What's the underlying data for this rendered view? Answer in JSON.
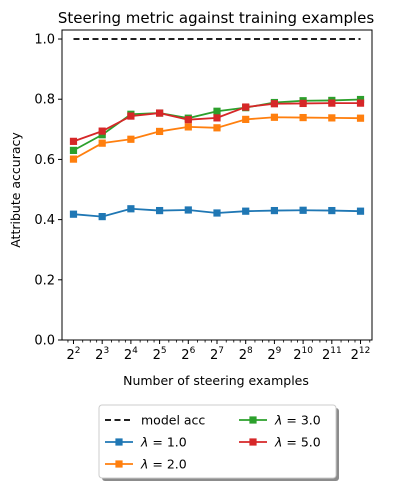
{
  "chart_data": {
    "type": "line",
    "title": "Steering metric against training examples",
    "xlabel": "Number of steering examples",
    "ylabel": "Attribute accuracy",
    "x_scale": "log2",
    "x": [
      4,
      8,
      16,
      32,
      64,
      128,
      256,
      512,
      1024,
      2048,
      4096
    ],
    "x_tick_labels": [
      {
        "base": "2",
        "exp": "2"
      },
      {
        "base": "2",
        "exp": "3"
      },
      {
        "base": "2",
        "exp": "4"
      },
      {
        "base": "2",
        "exp": "5"
      },
      {
        "base": "2",
        "exp": "6"
      },
      {
        "base": "2",
        "exp": "7"
      },
      {
        "base": "2",
        "exp": "8"
      },
      {
        "base": "2",
        "exp": "9"
      },
      {
        "base": "2",
        "exp": "10"
      },
      {
        "base": "2",
        "exp": "11"
      },
      {
        "base": "2",
        "exp": "12"
      }
    ],
    "ylim": [
      0,
      1.03
    ],
    "y_ticks": [
      "0.0",
      "0.2",
      "0.4",
      "0.6",
      "0.8",
      "1.0"
    ],
    "y_tick_values": [
      0,
      0.2,
      0.4,
      0.6,
      0.8,
      1.0
    ],
    "grid": false,
    "legend_placement": "below plot, two columns",
    "reference_line": {
      "name": "model acc",
      "value": 1.0,
      "color": "#000000",
      "style": "dashed"
    },
    "series": [
      {
        "name": "λ = 1.0",
        "color": "#1f77b4",
        "marker": "square",
        "values": [
          0.418,
          0.41,
          0.436,
          0.43,
          0.432,
          0.422,
          0.428,
          0.43,
          0.431,
          0.43,
          0.428
        ]
      },
      {
        "name": "λ = 2.0",
        "color": "#ff7f0e",
        "marker": "square",
        "values": [
          0.601,
          0.654,
          0.667,
          0.693,
          0.708,
          0.705,
          0.733,
          0.74,
          0.739,
          0.738,
          0.737
        ]
      },
      {
        "name": "λ = 3.0",
        "color": "#2ca02c",
        "marker": "square",
        "values": [
          0.63,
          0.682,
          0.75,
          0.754,
          0.737,
          0.76,
          0.772,
          0.789,
          0.795,
          0.796,
          0.799
        ]
      },
      {
        "name": "λ = 5.0",
        "color": "#d62728",
        "marker": "square",
        "values": [
          0.66,
          0.694,
          0.744,
          0.754,
          0.732,
          0.738,
          0.774,
          0.785,
          0.786,
          0.787,
          0.787
        ]
      }
    ],
    "legend": {
      "items": [
        {
          "kind": "ref",
          "prefix": "",
          "text": "model acc"
        },
        {
          "kind": "series",
          "index": 0,
          "prefix": "λ",
          "text": " = 1.0"
        },
        {
          "kind": "series",
          "index": 1,
          "prefix": "λ",
          "text": " = 2.0"
        },
        {
          "kind": "series",
          "index": 2,
          "prefix": "λ",
          "text": " = 3.0"
        },
        {
          "kind": "series",
          "index": 3,
          "prefix": "λ",
          "text": " = 5.0"
        }
      ]
    }
  }
}
